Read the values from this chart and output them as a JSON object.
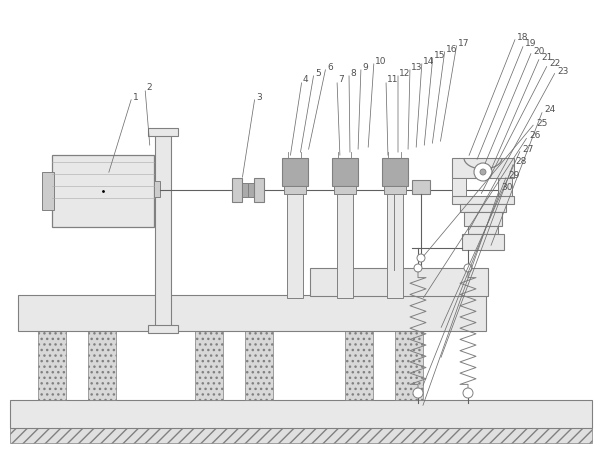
{
  "bg_color": "#ffffff",
  "lc": "#808080",
  "dc": "#606060",
  "fc_light": "#e8e8e8",
  "fc_mid": "#cccccc",
  "fc_dark": "#aaaaaa",
  "label_fs": 6.5,
  "fig_w": 6.05,
  "fig_h": 4.53,
  "dpi": 100,
  "labels": [
    [
      "1",
      108,
      175,
      132,
      97
    ],
    [
      "2",
      150,
      148,
      145,
      88
    ],
    [
      "3",
      242,
      180,
      255,
      97
    ],
    [
      "4",
      290,
      158,
      302,
      80
    ],
    [
      "5",
      300,
      155,
      314,
      73
    ],
    [
      "6",
      308,
      152,
      326,
      67
    ],
    [
      "7",
      340,
      158,
      337,
      80
    ],
    [
      "8",
      350,
      155,
      349,
      73
    ],
    [
      "9",
      358,
      152,
      361,
      67
    ],
    [
      "10",
      368,
      150,
      374,
      61
    ],
    [
      "11",
      388,
      158,
      386,
      80
    ],
    [
      "12",
      398,
      155,
      398,
      73
    ],
    [
      "13",
      408,
      152,
      410,
      67
    ],
    [
      "14",
      416,
      150,
      422,
      61
    ],
    [
      "15",
      424,
      148,
      433,
      55
    ],
    [
      "16",
      432,
      146,
      445,
      49
    ],
    [
      "17",
      440,
      144,
      457,
      43
    ],
    [
      "18",
      468,
      158,
      516,
      37
    ],
    [
      "19",
      476,
      162,
      524,
      44
    ],
    [
      "20",
      484,
      166,
      532,
      51
    ],
    [
      "21",
      490,
      172,
      540,
      57
    ],
    [
      "22",
      480,
      196,
      548,
      64
    ],
    [
      "23",
      468,
      232,
      556,
      71
    ],
    [
      "24",
      490,
      248,
      543,
      110
    ],
    [
      "25",
      422,
      258,
      535,
      123
    ],
    [
      "26",
      422,
      300,
      528,
      136
    ],
    [
      "27",
      440,
      330,
      521,
      149
    ],
    [
      "28",
      440,
      360,
      514,
      162
    ],
    [
      "29",
      422,
      388,
      507,
      175
    ],
    [
      "30",
      422,
      408,
      500,
      188
    ]
  ]
}
